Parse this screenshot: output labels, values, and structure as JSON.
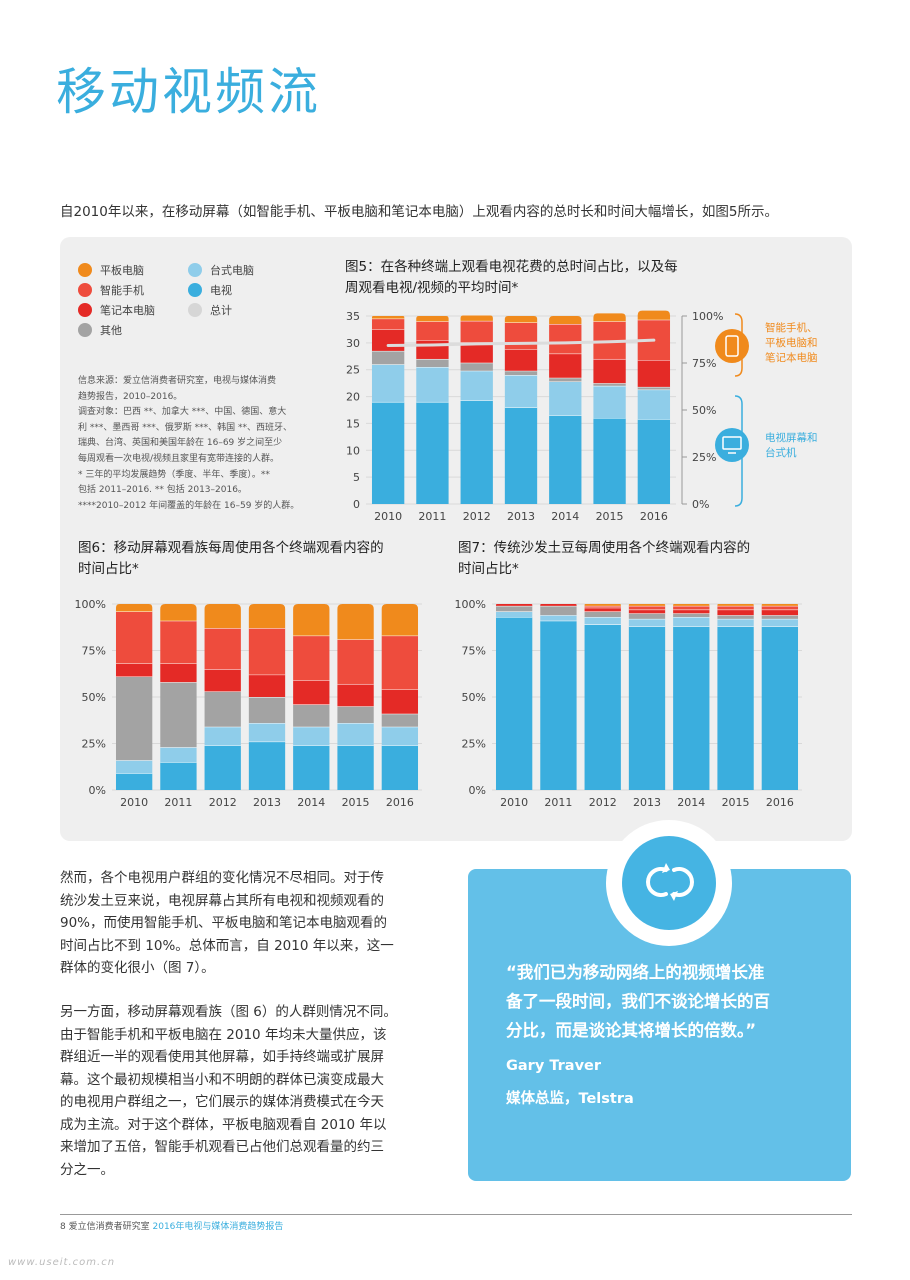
{
  "page": {
    "title": "移动视频流",
    "intro": "自2010年以来，在移动屏幕（如智能手机、平板电脑和笔记本电脑）上观看内容的总时长和时间大幅增长，如图5所示。"
  },
  "legend": [
    {
      "label": "平板电脑",
      "color": "#f08a1c"
    },
    {
      "label": "台式电脑",
      "color": "#8fcdea"
    },
    {
      "label": "智能手机",
      "color": "#ee4c3d"
    },
    {
      "label": "电视",
      "color": "#3aaede"
    },
    {
      "label": "笔记本电脑",
      "color": "#e42a26"
    },
    {
      "label": "总计",
      "color": "#d6d6d6"
    },
    {
      "label": "其他",
      "color": "#a3a3a3"
    }
  ],
  "note": [
    "信息来源：爱立信消费者研究室，电视与媒体消费",
    "趋势报告，2010–2016。",
    "调查对象：巴西 **、加拿大 ***、中国、德国、意大",
    "利 ***、墨西哥 ***、俄罗斯 ***、韩国 **、西班牙、",
    "瑞典、台湾、英国和美国年龄在 16–69 岁之间至少",
    "每周观看一次电视/视频且家里有宽带连接的人群。",
    "* 三年的平均发展趋势（季度、半年、季度）。**",
    "包括 2011–2016. ** 包括 2013–2016。",
    "****2010–2012 年间覆盖的年龄在 16–59 岁的人群。"
  ],
  "fig5": {
    "title_line1": "图5：在各种终端上观看电视花费的总时间占比，以及每",
    "title_line2": "周观看电视/视频的平均时间*",
    "callout_mobile": [
      "智能手机、",
      "平板电脑和",
      "笔记本电脑"
    ],
    "callout_tv": [
      "电视屏幕和",
      "台式机"
    ]
  },
  "fig6": {
    "title_line1": "图6：移动屏幕观看族每周使用各个终端观看内容的",
    "title_line2": "时间占比*"
  },
  "fig7": {
    "title_line1": "图7：传统沙发土豆每周使用各个终端观看内容的",
    "title_line2": "时间占比*"
  },
  "chart_data": [
    {
      "type": "bar",
      "title": "图5：在各种终端上观看电视花费的总时间占比，以及每周观看电视/视频的平均时间*",
      "categories": [
        "2010",
        "2011",
        "2012",
        "2013",
        "2014",
        "2015",
        "2016"
      ],
      "ylim": [
        0,
        35
      ],
      "yticks": [
        0,
        5,
        10,
        15,
        20,
        25,
        30,
        35
      ],
      "y2ticks": [
        "0%",
        "25%",
        "50%",
        "75%",
        "100%"
      ],
      "series": [
        {
          "name": "电视",
          "values": [
            19,
            19,
            19.3,
            18,
            16.5,
            16,
            15.8
          ]
        },
        {
          "name": "台式电脑",
          "values": [
            7,
            6.5,
            5.5,
            6,
            6.3,
            6,
            5.5
          ]
        },
        {
          "name": "其他",
          "values": [
            2.5,
            1.5,
            1.5,
            0.8,
            0.7,
            0.5,
            0.5
          ]
        },
        {
          "name": "笔记本电脑",
          "values": [
            4,
            3.5,
            3.8,
            4,
            4.5,
            4.5,
            5
          ]
        },
        {
          "name": "智能手机",
          "values": [
            2,
            3.5,
            4,
            5,
            5.5,
            7,
            7.5
          ]
        },
        {
          "name": "平板电脑",
          "values": [
            0.5,
            1,
            1,
            1.2,
            1.5,
            1.5,
            1.7
          ]
        }
      ],
      "line": {
        "name": "总计",
        "values": [
          29.5,
          29.6,
          29.8,
          29.9,
          30,
          30.2,
          30.5
        ]
      }
    },
    {
      "type": "bar",
      "title": "图6：移动屏幕观看族每周使用各个终端观看内容的时间占比*",
      "categories": [
        "2010",
        "2011",
        "2012",
        "2013",
        "2014",
        "2015",
        "2016"
      ],
      "ylim": [
        0,
        100
      ],
      "yticks": [
        "0%",
        "25%",
        "50%",
        "75%",
        "100%"
      ],
      "series": [
        {
          "name": "电视",
          "values": [
            9,
            15,
            24,
            26,
            24,
            24,
            24
          ]
        },
        {
          "name": "台式电脑",
          "values": [
            7,
            8,
            10,
            10,
            10,
            12,
            10
          ]
        },
        {
          "name": "其他",
          "values": [
            45,
            35,
            19,
            14,
            12,
            9,
            7
          ]
        },
        {
          "name": "笔记本电脑",
          "values": [
            7,
            10,
            12,
            12,
            13,
            12,
            13
          ]
        },
        {
          "name": "智能手机",
          "values": [
            28,
            23,
            22,
            25,
            24,
            24,
            29
          ]
        },
        {
          "name": "平板电脑",
          "values": [
            4,
            9,
            13,
            13,
            17,
            19,
            17
          ]
        }
      ]
    },
    {
      "type": "bar",
      "title": "图7：传统沙发土豆每周使用各个终端观看内容的时间占比*",
      "categories": [
        "2010",
        "2011",
        "2012",
        "2013",
        "2014",
        "2015",
        "2016"
      ],
      "ylim": [
        0,
        100
      ],
      "yticks": [
        "0%",
        "25%",
        "50%",
        "75%",
        "100%"
      ],
      "series": [
        {
          "name": "电视",
          "values": [
            93,
            91,
            89,
            88,
            88,
            88,
            88
          ]
        },
        {
          "name": "台式电脑",
          "values": [
            3,
            3,
            4,
            4,
            5,
            4,
            4
          ]
        },
        {
          "name": "其他",
          "values": [
            3,
            5,
            3,
            3,
            2,
            2,
            2
          ]
        },
        {
          "name": "笔记本电脑",
          "values": [
            1,
            1,
            2,
            2,
            2,
            3,
            3
          ]
        },
        {
          "name": "智能手机",
          "values": [
            0,
            0,
            1,
            2,
            2,
            2,
            2
          ]
        },
        {
          "name": "平板电脑",
          "values": [
            0,
            0,
            1,
            1,
            1,
            1,
            1
          ]
        }
      ]
    }
  ],
  "body1": [
    "然而，各个电视用户群组的变化情况不尽相同。对于传",
    "统沙发土豆来说，电视屏幕占其所有电视和视频观看的",
    "90%，而使用智能手机、平板电脑和笔记本电脑观看的",
    "时间占比不到 10%。总体而言，自 2010 年以来，这一",
    "群体的变化很小（图 7）。"
  ],
  "body2": [
    "另一方面，移动屏幕观看族（图 6）的人群则情况不同。",
    "由于智能手机和平板电脑在 2010 年均未大量供应，该",
    "群组近一半的观看使用其他屏幕，如手持终端或扩展屏",
    "幕。这个最初规模相当小和不明朗的群体已演变成最大",
    "的电视用户群组之一，它们展示的媒体消费模式在今天",
    "成为主流。对于这个群体，平板电脑观看自 2010 年以",
    "来增加了五倍，智能手机观看已占他们总观看量的约三",
    "分之一。"
  ],
  "quote": {
    "lines": [
      "“我们已为移动网络上的视频增长准",
      "备了一段时间，我们不谈论增长的百",
      "分比，而是谈论其将增长的倍数。”"
    ],
    "author": "Gary Traver",
    "role": "媒体总监，Telstra"
  },
  "footer": {
    "page_num": "8",
    "org": "爱立信消费者研究室",
    "report": "2016年电视与媒体消费趋势报告"
  },
  "watermark": "www.useit.com.cn"
}
